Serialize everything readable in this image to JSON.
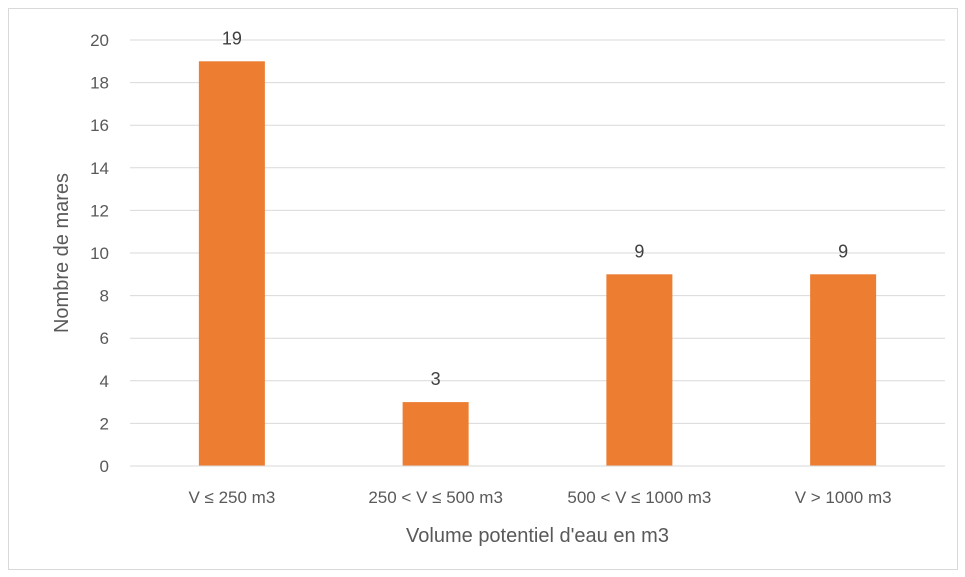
{
  "chart_data": {
    "type": "bar",
    "title": "",
    "categories": [
      "V ≤ 250 m3",
      "250 < V ≤ 500 m3",
      "500 < V ≤ 1000 m3",
      "V > 1000 m3"
    ],
    "values": [
      19,
      3,
      9,
      9
    ],
    "data_labels": [
      "19",
      "3",
      "9",
      "9"
    ],
    "xlabel": "Volume potentiel d'eau en m3",
    "ylabel": "Nombre de mares",
    "ylim": [
      0,
      20
    ],
    "yticks": [
      0,
      2,
      4,
      6,
      8,
      10,
      12,
      14,
      16,
      18,
      20
    ],
    "ytick_labels": [
      "0",
      "2",
      "4",
      "6",
      "8",
      "10",
      "12",
      "14",
      "16",
      "18",
      "20"
    ],
    "grid": true,
    "legend": "none",
    "colors": {
      "bar": "#ED7D31",
      "grid": "#D9D9D9",
      "tick_text": "#595959",
      "label_text": "#404040"
    }
  }
}
